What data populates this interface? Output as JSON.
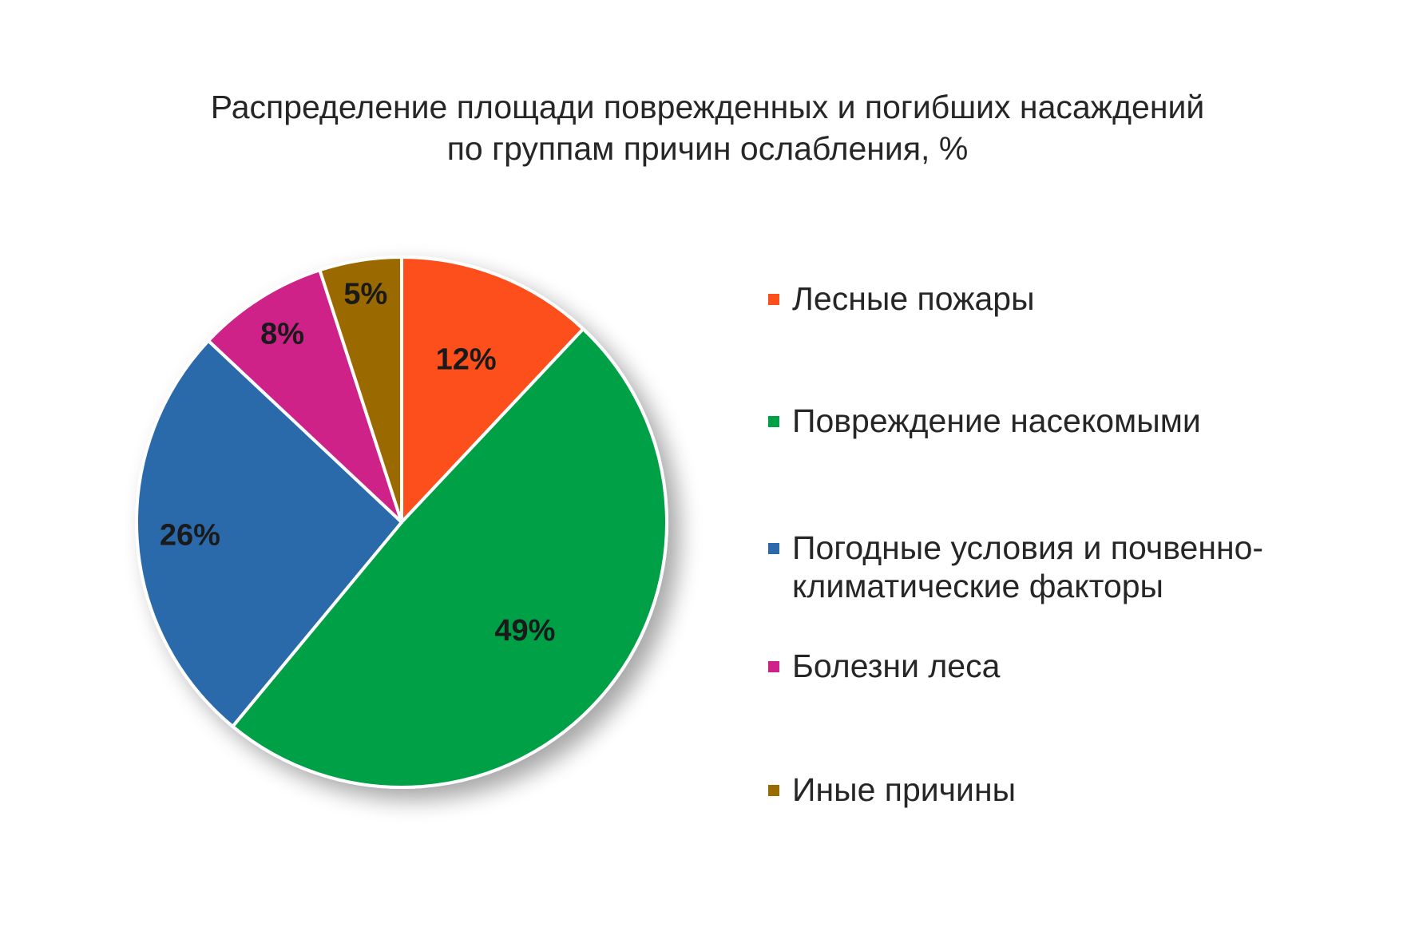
{
  "chart_data": {
    "type": "pie",
    "title_lines": [
      "Распределение площади поврежденных и погибших насаждений",
      "по группам причин ослабления, %"
    ],
    "categories": [
      "Лесные пожары",
      "Повреждение насекомыми",
      "Погодные условия и почвенно-климатические факторы",
      "Болезни леса",
      "Иные причины"
    ],
    "legend_lines": [
      "Лесные пожары",
      "Повреждение насекомыми",
      "Погодные условия и почвенно-\nклиматические факторы",
      "Болезни леса",
      "Иные причины"
    ],
    "values": [
      12,
      49,
      26,
      8,
      5
    ],
    "data_labels": [
      "12%",
      "49%",
      "26%",
      "8%",
      "5%"
    ],
    "colors": [
      "#fc4f1c",
      "#00a046",
      "#2a6aab",
      "#cf2289",
      "#9a6b00"
    ],
    "legend_position": "right"
  }
}
